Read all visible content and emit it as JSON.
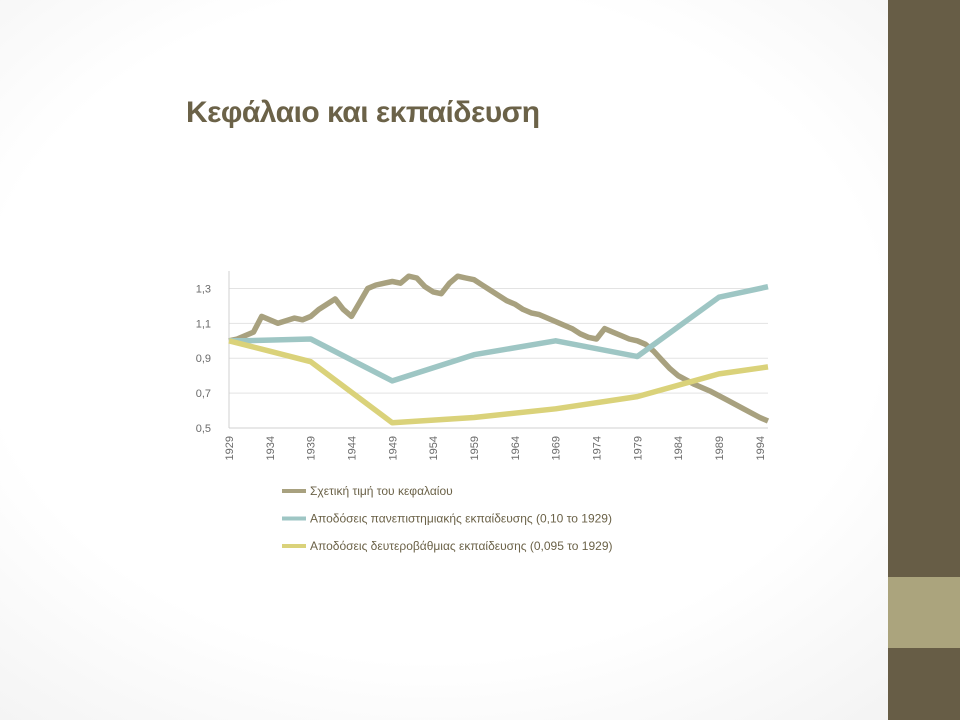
{
  "slide": {
    "title": "Κεφάλαιο και εκπαίδευση"
  },
  "colors": {
    "side_band": "#675d46",
    "side_accent": "#aba47d",
    "title": "#6b6248"
  },
  "chart_data": {
    "type": "line",
    "title": "",
    "xlabel": "",
    "ylabel": "",
    "ylim": [
      0.5,
      1.4
    ],
    "yticks": [
      "0,5",
      "0,7",
      "0,9",
      "1,1",
      "1,3"
    ],
    "ytick_values": [
      0.5,
      0.7,
      0.9,
      1.1,
      1.3
    ],
    "xlim": [
      1929,
      1995
    ],
    "xticks": [
      "1929",
      "1934",
      "1939",
      "1944",
      "1949",
      "1954",
      "1959",
      "1964",
      "1969",
      "1974",
      "1979",
      "1984",
      "1989",
      "1994"
    ],
    "xtick_values": [
      1929,
      1934,
      1939,
      1944,
      1949,
      1954,
      1959,
      1964,
      1969,
      1974,
      1979,
      1984,
      1989,
      1994
    ],
    "grid": true,
    "legend_position": "bottom",
    "series": [
      {
        "name": "Σχετική τιμή του κεφαλαίου",
        "color": "#a8a17f",
        "x": [
          1929,
          1930,
          1932,
          1933,
          1935,
          1937,
          1938,
          1939,
          1940,
          1942,
          1943,
          1944,
          1945,
          1946,
          1947,
          1948,
          1949,
          1950,
          1951,
          1952,
          1953,
          1954,
          1955,
          1956,
          1957,
          1958,
          1959,
          1960,
          1961,
          1962,
          1963,
          1964,
          1965,
          1966,
          1967,
          1968,
          1969,
          1970,
          1971,
          1972,
          1973,
          1974,
          1975,
          1976,
          1977,
          1978,
          1979,
          1980,
          1981,
          1982,
          1983,
          1984,
          1986,
          1988,
          1990,
          1992,
          1994,
          1995
        ],
        "values": [
          1.0,
          1.01,
          1.05,
          1.14,
          1.1,
          1.13,
          1.12,
          1.14,
          1.18,
          1.24,
          1.18,
          1.14,
          1.22,
          1.3,
          1.32,
          1.33,
          1.34,
          1.33,
          1.37,
          1.36,
          1.31,
          1.28,
          1.27,
          1.33,
          1.37,
          1.36,
          1.35,
          1.32,
          1.29,
          1.26,
          1.23,
          1.21,
          1.18,
          1.16,
          1.15,
          1.13,
          1.11,
          1.09,
          1.07,
          1.04,
          1.02,
          1.01,
          1.07,
          1.05,
          1.03,
          1.01,
          1.0,
          0.98,
          0.94,
          0.89,
          0.84,
          0.8,
          0.75,
          0.71,
          0.66,
          0.61,
          0.56,
          0.54
        ]
      },
      {
        "name": "Αποδόσεις πανεπιστημιακής εκπαίδευσης (0,10 το 1929)",
        "color": "#9ec6c4",
        "x": [
          1929,
          1931,
          1939,
          1949,
          1959,
          1969,
          1979,
          1989,
          1995
        ],
        "values": [
          1.0,
          1.0,
          1.01,
          0.77,
          0.92,
          1.0,
          0.91,
          1.25,
          1.31
        ]
      },
      {
        "name": "Αποδόσεις δευτεροβάθμιας εκπαίδευσης (0,095 το 1929)",
        "color": "#dad27a",
        "x": [
          1929,
          1934,
          1939,
          1949,
          1959,
          1969,
          1979,
          1989,
          1995
        ],
        "values": [
          1.0,
          0.94,
          0.88,
          0.53,
          0.56,
          0.61,
          0.68,
          0.81,
          0.85
        ]
      }
    ]
  }
}
